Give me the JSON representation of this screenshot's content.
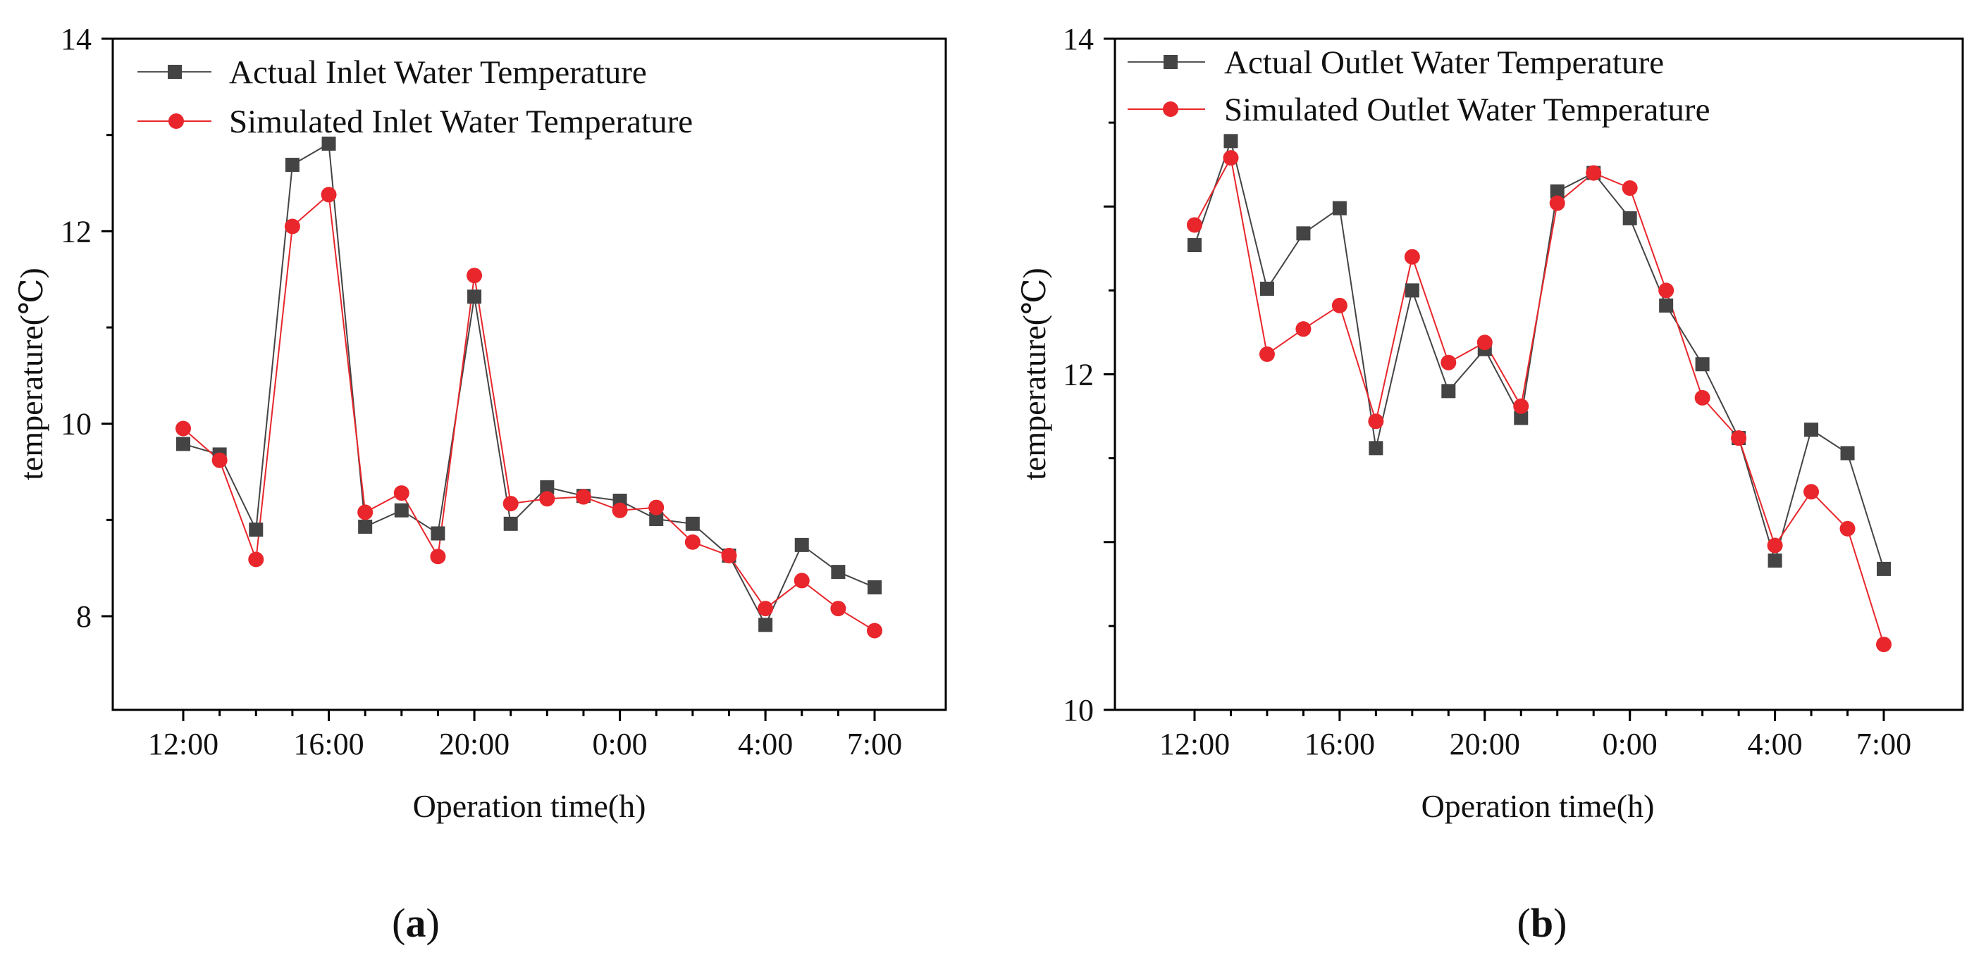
{
  "chart_data": [
    {
      "type": "line",
      "panel_label": "a",
      "xlabel": "Operation time(h)",
      "ylabel": "temperature(℃)",
      "ylim": [
        7.0,
        14.0
      ],
      "yticks": [
        8,
        10,
        12,
        14
      ],
      "yticks_labeled": [
        8,
        10,
        12,
        14
      ],
      "x_hours": [
        12,
        13,
        14,
        15,
        16,
        17,
        18,
        19,
        20,
        21,
        22,
        23,
        24,
        25,
        26,
        27,
        28,
        29,
        30,
        31
      ],
      "xticks": [
        {
          "hour": 12,
          "label": "12:00"
        },
        {
          "hour": 16,
          "label": "16:00"
        },
        {
          "hour": 20,
          "label": "20:00"
        },
        {
          "hour": 24,
          "label": "0:00"
        },
        {
          "hour": 28,
          "label": "4:00"
        },
        {
          "hour": 31,
          "label": "7:00"
        }
      ],
      "legend_position": "top-left",
      "series": [
        {
          "name": "Actual Inlet Water Temperature",
          "marker": "square",
          "color": "#444444",
          "values": [
            9.79,
            9.68,
            8.9,
            12.69,
            12.91,
            8.93,
            9.1,
            8.86,
            11.32,
            8.96,
            9.34,
            9.25,
            9.2,
            9.01,
            8.96,
            8.63,
            7.91,
            8.74,
            8.46,
            8.3
          ]
        },
        {
          "name": "Simulated Inlet Water Temperature",
          "marker": "circle",
          "color": "#e8262b",
          "values": [
            9.95,
            9.62,
            8.59,
            12.05,
            12.38,
            9.08,
            9.28,
            8.62,
            11.54,
            9.17,
            9.22,
            9.24,
            9.1,
            9.13,
            8.77,
            8.63,
            8.08,
            8.37,
            8.08,
            7.85
          ]
        }
      ]
    },
    {
      "type": "line",
      "panel_label": "b",
      "xlabel": "Operation time(h)",
      "ylabel": "temperature(℃)",
      "ylim": [
        10.0,
        14.0
      ],
      "yticks": [
        10,
        11,
        12,
        13,
        14
      ],
      "yticks_labeled": [
        10,
        12,
        14
      ],
      "x_hours": [
        12,
        13,
        14,
        15,
        16,
        17,
        18,
        19,
        20,
        21,
        22,
        23,
        24,
        25,
        26,
        27,
        28,
        29,
        30,
        31
      ],
      "xticks": [
        {
          "hour": 12,
          "label": "12:00"
        },
        {
          "hour": 16,
          "label": "16:00"
        },
        {
          "hour": 20,
          "label": "20:00"
        },
        {
          "hour": 24,
          "label": "0:00"
        },
        {
          "hour": 28,
          "label": "4:00"
        },
        {
          "hour": 31,
          "label": "7:00"
        }
      ],
      "legend_position": "top-left",
      "series": [
        {
          "name": "Actual Outlet Water Temperature",
          "marker": "square",
          "color": "#444444",
          "values": [
            12.77,
            13.39,
            12.51,
            12.84,
            12.99,
            11.56,
            12.5,
            11.9,
            12.15,
            11.74,
            13.09,
            13.2,
            12.93,
            12.41,
            12.06,
            11.62,
            10.89,
            11.67,
            11.53,
            10.84
          ]
        },
        {
          "name": "Simulated Outlet Water Temperature",
          "marker": "circle",
          "color": "#e8262b",
          "values": [
            12.89,
            13.29,
            12.12,
            12.27,
            12.41,
            11.72,
            12.7,
            12.07,
            12.19,
            11.81,
            13.02,
            13.2,
            13.11,
            12.5,
            11.86,
            11.62,
            10.98,
            11.3,
            11.08,
            10.39
          ]
        }
      ]
    }
  ]
}
